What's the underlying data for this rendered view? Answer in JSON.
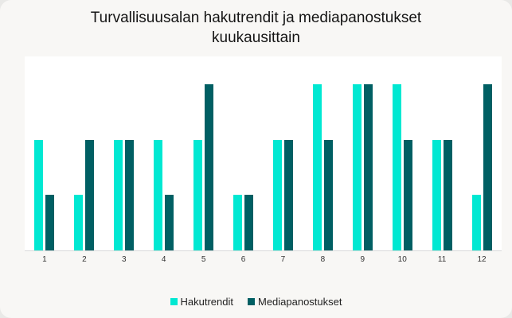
{
  "chart_data": {
    "type": "bar",
    "title": "Turvallisuusalan hakutrendit ja mediapanostukset kuukausittain",
    "title_lines": [
      "Turvallisuusalan hakutrendit ja mediapanostukset",
      "kuukausittain"
    ],
    "categories": [
      "1",
      "2",
      "3",
      "4",
      "5",
      "6",
      "7",
      "8",
      "9",
      "10",
      "11",
      "12"
    ],
    "series": [
      {
        "name": "Hakutrendit",
        "color": "#00e8d2",
        "values": [
          2,
          1,
          2,
          2,
          2,
          1,
          2,
          3,
          3,
          3,
          2,
          1
        ]
      },
      {
        "name": "Mediapanostukset",
        "color": "#005f63",
        "values": [
          1,
          2,
          2,
          1,
          3,
          1,
          2,
          2,
          3,
          2,
          2,
          3
        ]
      }
    ],
    "xlabel": "",
    "ylabel": "",
    "ylim": [
      0,
      3.5
    ],
    "grid": false,
    "y_axis_visible": false,
    "legend_position": "bottom"
  }
}
